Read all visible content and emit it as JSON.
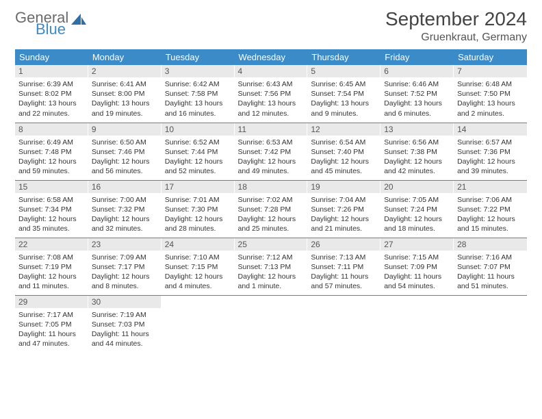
{
  "brand": {
    "general": "General",
    "blue": "Blue"
  },
  "title": "September 2024",
  "location": "Gruenkraut, Germany",
  "weekday_labels": [
    "Sunday",
    "Monday",
    "Tuesday",
    "Wednesday",
    "Thursday",
    "Friday",
    "Saturday"
  ],
  "colors": {
    "header_bg": "#3b8bc9",
    "daynum_bg": "#e9e9e9",
    "rule": "#3b8bc9"
  },
  "weeks": [
    [
      {
        "day": "1",
        "sunrise": "Sunrise: 6:39 AM",
        "sunset": "Sunset: 8:02 PM",
        "daylight": "Daylight: 13 hours and 22 minutes."
      },
      {
        "day": "2",
        "sunrise": "Sunrise: 6:41 AM",
        "sunset": "Sunset: 8:00 PM",
        "daylight": "Daylight: 13 hours and 19 minutes."
      },
      {
        "day": "3",
        "sunrise": "Sunrise: 6:42 AM",
        "sunset": "Sunset: 7:58 PM",
        "daylight": "Daylight: 13 hours and 16 minutes."
      },
      {
        "day": "4",
        "sunrise": "Sunrise: 6:43 AM",
        "sunset": "Sunset: 7:56 PM",
        "daylight": "Daylight: 13 hours and 12 minutes."
      },
      {
        "day": "5",
        "sunrise": "Sunrise: 6:45 AM",
        "sunset": "Sunset: 7:54 PM",
        "daylight": "Daylight: 13 hours and 9 minutes."
      },
      {
        "day": "6",
        "sunrise": "Sunrise: 6:46 AM",
        "sunset": "Sunset: 7:52 PM",
        "daylight": "Daylight: 13 hours and 6 minutes."
      },
      {
        "day": "7",
        "sunrise": "Sunrise: 6:48 AM",
        "sunset": "Sunset: 7:50 PM",
        "daylight": "Daylight: 13 hours and 2 minutes."
      }
    ],
    [
      {
        "day": "8",
        "sunrise": "Sunrise: 6:49 AM",
        "sunset": "Sunset: 7:48 PM",
        "daylight": "Daylight: 12 hours and 59 minutes."
      },
      {
        "day": "9",
        "sunrise": "Sunrise: 6:50 AM",
        "sunset": "Sunset: 7:46 PM",
        "daylight": "Daylight: 12 hours and 56 minutes."
      },
      {
        "day": "10",
        "sunrise": "Sunrise: 6:52 AM",
        "sunset": "Sunset: 7:44 PM",
        "daylight": "Daylight: 12 hours and 52 minutes."
      },
      {
        "day": "11",
        "sunrise": "Sunrise: 6:53 AM",
        "sunset": "Sunset: 7:42 PM",
        "daylight": "Daylight: 12 hours and 49 minutes."
      },
      {
        "day": "12",
        "sunrise": "Sunrise: 6:54 AM",
        "sunset": "Sunset: 7:40 PM",
        "daylight": "Daylight: 12 hours and 45 minutes."
      },
      {
        "day": "13",
        "sunrise": "Sunrise: 6:56 AM",
        "sunset": "Sunset: 7:38 PM",
        "daylight": "Daylight: 12 hours and 42 minutes."
      },
      {
        "day": "14",
        "sunrise": "Sunrise: 6:57 AM",
        "sunset": "Sunset: 7:36 PM",
        "daylight": "Daylight: 12 hours and 39 minutes."
      }
    ],
    [
      {
        "day": "15",
        "sunrise": "Sunrise: 6:58 AM",
        "sunset": "Sunset: 7:34 PM",
        "daylight": "Daylight: 12 hours and 35 minutes."
      },
      {
        "day": "16",
        "sunrise": "Sunrise: 7:00 AM",
        "sunset": "Sunset: 7:32 PM",
        "daylight": "Daylight: 12 hours and 32 minutes."
      },
      {
        "day": "17",
        "sunrise": "Sunrise: 7:01 AM",
        "sunset": "Sunset: 7:30 PM",
        "daylight": "Daylight: 12 hours and 28 minutes."
      },
      {
        "day": "18",
        "sunrise": "Sunrise: 7:02 AM",
        "sunset": "Sunset: 7:28 PM",
        "daylight": "Daylight: 12 hours and 25 minutes."
      },
      {
        "day": "19",
        "sunrise": "Sunrise: 7:04 AM",
        "sunset": "Sunset: 7:26 PM",
        "daylight": "Daylight: 12 hours and 21 minutes."
      },
      {
        "day": "20",
        "sunrise": "Sunrise: 7:05 AM",
        "sunset": "Sunset: 7:24 PM",
        "daylight": "Daylight: 12 hours and 18 minutes."
      },
      {
        "day": "21",
        "sunrise": "Sunrise: 7:06 AM",
        "sunset": "Sunset: 7:22 PM",
        "daylight": "Daylight: 12 hours and 15 minutes."
      }
    ],
    [
      {
        "day": "22",
        "sunrise": "Sunrise: 7:08 AM",
        "sunset": "Sunset: 7:19 PM",
        "daylight": "Daylight: 12 hours and 11 minutes."
      },
      {
        "day": "23",
        "sunrise": "Sunrise: 7:09 AM",
        "sunset": "Sunset: 7:17 PM",
        "daylight": "Daylight: 12 hours and 8 minutes."
      },
      {
        "day": "24",
        "sunrise": "Sunrise: 7:10 AM",
        "sunset": "Sunset: 7:15 PM",
        "daylight": "Daylight: 12 hours and 4 minutes."
      },
      {
        "day": "25",
        "sunrise": "Sunrise: 7:12 AM",
        "sunset": "Sunset: 7:13 PM",
        "daylight": "Daylight: 12 hours and 1 minute."
      },
      {
        "day": "26",
        "sunrise": "Sunrise: 7:13 AM",
        "sunset": "Sunset: 7:11 PM",
        "daylight": "Daylight: 11 hours and 57 minutes."
      },
      {
        "day": "27",
        "sunrise": "Sunrise: 7:15 AM",
        "sunset": "Sunset: 7:09 PM",
        "daylight": "Daylight: 11 hours and 54 minutes."
      },
      {
        "day": "28",
        "sunrise": "Sunrise: 7:16 AM",
        "sunset": "Sunset: 7:07 PM",
        "daylight": "Daylight: 11 hours and 51 minutes."
      }
    ],
    [
      {
        "day": "29",
        "sunrise": "Sunrise: 7:17 AM",
        "sunset": "Sunset: 7:05 PM",
        "daylight": "Daylight: 11 hours and 47 minutes."
      },
      {
        "day": "30",
        "sunrise": "Sunrise: 7:19 AM",
        "sunset": "Sunset: 7:03 PM",
        "daylight": "Daylight: 11 hours and 44 minutes."
      },
      null,
      null,
      null,
      null,
      null
    ]
  ]
}
